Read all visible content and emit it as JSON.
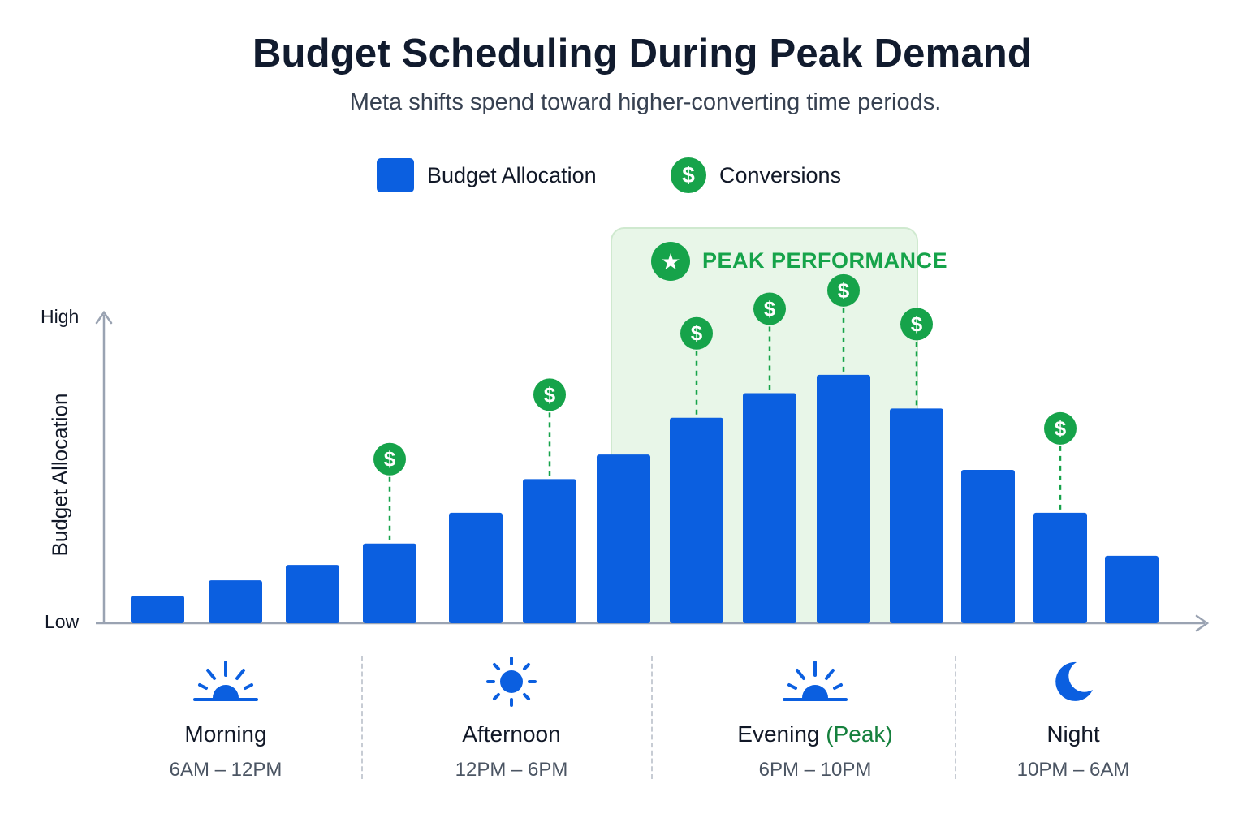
{
  "title": "Budget Scheduling During Peak Demand",
  "subtitle": "Meta shifts spend toward higher-converting time periods.",
  "legend": {
    "budget_label": "Budget Allocation",
    "conversions_label": "Conversions",
    "conversion_symbol": "$"
  },
  "colors": {
    "bar": "#0b5fe0",
    "conversion": "#16a34a",
    "peak_band": "#e8f6e8",
    "axis": "#9aa3b2"
  },
  "peak": {
    "label": "PEAK PERFORMANCE",
    "icon": "star-icon",
    "start_index": 6,
    "end_index": 9
  },
  "chart_data": {
    "type": "bar",
    "ylabel": "Budget Allocation",
    "y_tick_high": "High",
    "y_tick_low": "Low",
    "ylim": [
      0,
      100
    ],
    "grid": false,
    "legend_position": "top-center",
    "series": [
      {
        "name": "Budget Allocation",
        "values": [
          9,
          14,
          19,
          26,
          36,
          47,
          55,
          67,
          75,
          81,
          70,
          50,
          36,
          22
        ]
      }
    ],
    "conversions": [
      false,
      false,
      false,
      true,
      false,
      true,
      false,
      true,
      true,
      true,
      true,
      false,
      true,
      false
    ]
  },
  "periods": [
    {
      "name": "Morning",
      "range": "6AM – 12PM",
      "icon": "sunrise-icon"
    },
    {
      "name": "Afternoon",
      "range": "12PM – 6PM",
      "icon": "sun-icon"
    },
    {
      "name": "Evening",
      "name_suffix": "(Peak)",
      "range": "6PM – 10PM",
      "icon": "sunset-icon"
    },
    {
      "name": "Night",
      "range": "10PM – 6AM",
      "icon": "moon-icon"
    }
  ]
}
